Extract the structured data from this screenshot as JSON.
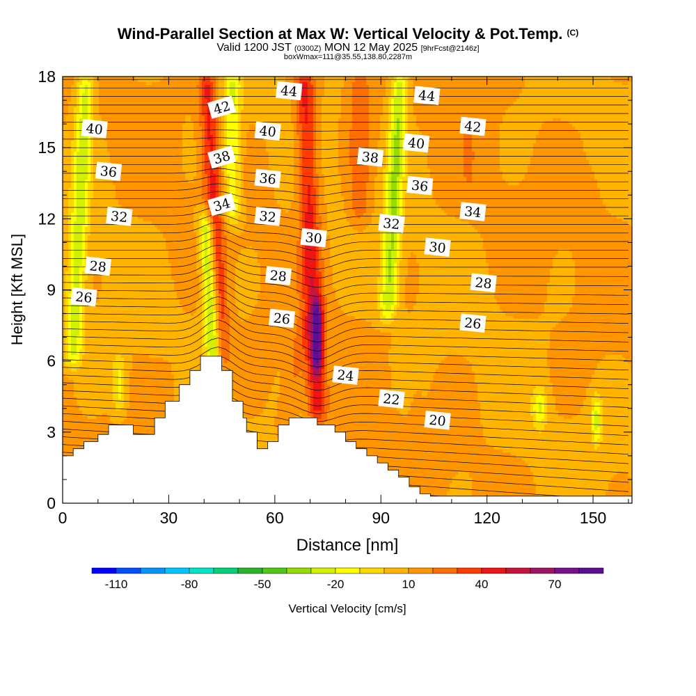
{
  "title": {
    "main": "Wind-Parallel Section at Max W: Vertical Velocity & Pot.Temp.",
    "copyright": "(C)",
    "line2_a": "Valid 1200 JST",
    "line2_b": "(0300Z)",
    "line2_c": "MON 12 May 2025",
    "line2_d": "[9hrFcst@2146z]",
    "line3": "boxWmax=111@35.55,138.80,2287m"
  },
  "chart_data": {
    "type": "heatmap",
    "xlabel": "Distance [nm]",
    "ylabel": "Height [Kft MSL]",
    "xlim": [
      0,
      161
    ],
    "ylim": [
      0,
      18
    ],
    "x_ticks": [
      0,
      30,
      60,
      90,
      120,
      150
    ],
    "y_ticks": [
      0,
      3,
      6,
      9,
      12,
      15,
      18
    ],
    "terrain": [
      [
        0,
        2
      ],
      [
        3,
        2
      ],
      [
        3,
        2.3
      ],
      [
        6,
        2.3
      ],
      [
        6,
        2.6
      ],
      [
        10,
        2.6
      ],
      [
        10,
        2.9
      ],
      [
        13,
        2.9
      ],
      [
        13,
        3.3
      ],
      [
        20,
        3.3
      ],
      [
        20,
        2.9
      ],
      [
        26,
        2.9
      ],
      [
        26,
        3.6
      ],
      [
        29,
        3.6
      ],
      [
        29,
        4.3
      ],
      [
        33,
        4.3
      ],
      [
        33,
        5
      ],
      [
        36,
        5
      ],
      [
        36,
        5.6
      ],
      [
        39,
        5.6
      ],
      [
        39,
        6.2
      ],
      [
        45,
        6.2
      ],
      [
        45,
        5.6
      ],
      [
        48,
        5.6
      ],
      [
        48,
        4.3
      ],
      [
        51,
        4.3
      ],
      [
        51,
        3.6
      ],
      [
        52,
        3.6
      ],
      [
        52,
        3
      ],
      [
        55,
        3
      ],
      [
        55,
        2.3
      ],
      [
        58,
        2.3
      ],
      [
        58,
        2.6
      ],
      [
        61,
        2.6
      ],
      [
        61,
        3.3
      ],
      [
        64,
        3.3
      ],
      [
        64,
        3.6
      ],
      [
        72,
        3.6
      ],
      [
        72,
        3.3
      ],
      [
        77,
        3.3
      ],
      [
        77,
        3
      ],
      [
        80,
        3
      ],
      [
        80,
        2.6
      ],
      [
        83,
        2.6
      ],
      [
        83,
        2.3
      ],
      [
        86,
        2.3
      ],
      [
        86,
        2
      ],
      [
        89,
        2
      ],
      [
        89,
        1.7
      ],
      [
        92,
        1.7
      ],
      [
        92,
        1.4
      ],
      [
        95,
        1.4
      ],
      [
        95,
        1.1
      ],
      [
        98,
        1.1
      ],
      [
        98,
        0.7
      ],
      [
        101,
        0.7
      ],
      [
        101,
        0.4
      ],
      [
        104,
        0.4
      ],
      [
        104,
        0.3
      ],
      [
        161,
        0.3
      ]
    ],
    "w_features": [
      {
        "x": 45,
        "y_bottom": 6,
        "y_top": 18,
        "x_shift_per_kft": -0.35,
        "width": 2.5,
        "w": 42
      },
      {
        "x": 72,
        "y_bottom": 3.6,
        "y_top": 18,
        "x_shift_per_kft": -0.25,
        "width": 2.8,
        "w": 45
      },
      {
        "x": 72,
        "y_bottom": 5.8,
        "y_top": 8.3,
        "x_shift_per_kft": 0,
        "width": 1.5,
        "w": 60
      },
      {
        "x": 43,
        "y_bottom": 6,
        "y_top": 12,
        "x_shift_per_kft": -0.4,
        "width": 2.2,
        "w": -40
      },
      {
        "x": 3,
        "y_bottom": 6,
        "y_top": 18,
        "x_shift_per_kft": 0.3,
        "width": 2.5,
        "w": -25
      },
      {
        "x": 92,
        "y_bottom": 8,
        "y_top": 18,
        "x_shift_per_kft": 0.35,
        "width": 2.5,
        "w": -30
      },
      {
        "x": 48,
        "y_bottom": 12,
        "y_top": 18,
        "x_shift_per_kft": 0,
        "width": 2.5,
        "w": -20
      },
      {
        "x": 63,
        "y_bottom": 3.2,
        "y_top": 7.5,
        "x_shift_per_kft": 1.2,
        "width": 2.5,
        "w": 22
      },
      {
        "x": 30,
        "y_bottom": 3.5,
        "y_top": 6,
        "x_shift_per_kft": 0,
        "width": 4,
        "w": 14
      },
      {
        "x": 84,
        "y_bottom": 12,
        "y_top": 18,
        "x_shift_per_kft": 0,
        "width": 3,
        "w": 28
      },
      {
        "x": 135,
        "y_bottom": 3.5,
        "y_top": 4.5,
        "x_shift_per_kft": 0,
        "width": 2,
        "w": -20
      },
      {
        "x": 151,
        "y_bottom": 2.8,
        "y_top": 4.2,
        "x_shift_per_kft": 0,
        "width": 1.5,
        "w": -22
      },
      {
        "x": 100,
        "y_bottom": 3,
        "y_top": 5,
        "x_shift_per_kft": 0,
        "width": 2,
        "w": 12
      },
      {
        "x": 16,
        "y_bottom": 4,
        "y_top": 6,
        "x_shift_per_kft": 0,
        "width": 2,
        "w": -12
      },
      {
        "x": 115,
        "y_bottom": 13,
        "y_top": 18,
        "x_shift_per_kft": 0,
        "width": 3,
        "w": 15
      },
      {
        "x": 150,
        "y_bottom": 8,
        "y_top": 14,
        "x_shift_per_kft": 0,
        "width": 4,
        "w": 12
      }
    ],
    "theta_contour_labels": [
      {
        "text": "44",
        "x": 64,
        "y": 17.4
      },
      {
        "text": "42",
        "x": 45,
        "y": 16.7
      },
      {
        "text": "40",
        "x": 9,
        "y": 15.8
      },
      {
        "text": "40",
        "x": 58,
        "y": 15.7
      },
      {
        "text": "38",
        "x": 45,
        "y": 14.6
      },
      {
        "text": "36",
        "x": 13,
        "y": 14.0
      },
      {
        "text": "36",
        "x": 58,
        "y": 13.7
      },
      {
        "text": "34",
        "x": 45,
        "y": 12.6
      },
      {
        "text": "32",
        "x": 16,
        "y": 12.1
      },
      {
        "text": "32",
        "x": 58,
        "y": 12.1
      },
      {
        "text": "30",
        "x": 71,
        "y": 11.2
      },
      {
        "text": "28",
        "x": 10,
        "y": 10.0
      },
      {
        "text": "28",
        "x": 61,
        "y": 9.6
      },
      {
        "text": "26",
        "x": 6,
        "y": 8.7
      },
      {
        "text": "26",
        "x": 62,
        "y": 7.8
      },
      {
        "text": "24",
        "x": 80,
        "y": 5.4
      },
      {
        "text": "22",
        "x": 93,
        "y": 4.4
      },
      {
        "text": "20",
        "x": 106,
        "y": 3.5
      },
      {
        "text": "44",
        "x": 103,
        "y": 17.2
      },
      {
        "text": "42",
        "x": 116,
        "y": 15.9
      },
      {
        "text": "40",
        "x": 100,
        "y": 15.2
      },
      {
        "text": "38",
        "x": 87,
        "y": 14.6
      },
      {
        "text": "36",
        "x": 101,
        "y": 13.4
      },
      {
        "text": "34",
        "x": 116,
        "y": 12.3
      },
      {
        "text": "32",
        "x": 93,
        "y": 11.8
      },
      {
        "text": "30",
        "x": 106,
        "y": 10.8
      },
      {
        "text": "28",
        "x": 119,
        "y": 9.3
      },
      {
        "text": "26",
        "x": 116,
        "y": 7.6
      }
    ],
    "colorbar": {
      "label": "Vertical Velocity [cm/s]",
      "min": -120,
      "max": 90,
      "step": 10,
      "tick_labels": [
        "-110",
        "-80",
        "-50",
        "-20",
        "10",
        "40",
        "70"
      ],
      "tick_values": [
        -110,
        -80,
        -50,
        -20,
        10,
        40,
        70
      ],
      "colors": [
        "#0000ff",
        "#0050ff",
        "#0096ff",
        "#00c8ff",
        "#00e6c8",
        "#00d278",
        "#28b428",
        "#50c814",
        "#96dc00",
        "#d2f000",
        "#ffff00",
        "#ffd700",
        "#ffb400",
        "#ff9600",
        "#ff6e00",
        "#ff3c00",
        "#f01414",
        "#c8143c",
        "#a01464",
        "#780f8c",
        "#5a0f96"
      ]
    }
  }
}
